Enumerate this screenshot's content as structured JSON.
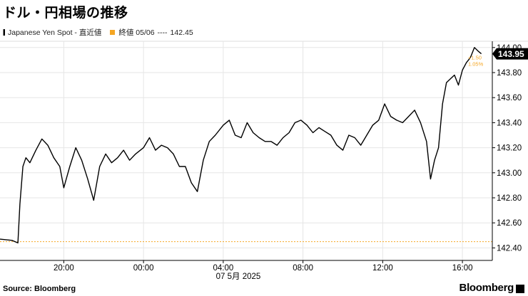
{
  "title": "ドル・円相場の推移",
  "legend": {
    "series_label": "Japanese Yen Spot - 直近値",
    "ref_label": "終値 05/06",
    "ref_dashes": "----",
    "ref_value": "142.45"
  },
  "colors": {
    "line": "#000000",
    "reference": "#f5a623",
    "grid": "#e6e6e6",
    "axis": "#000000"
  },
  "chart_data": {
    "type": "line",
    "title": "ドル・円相場の推移",
    "xlabel": "07 5月 2025",
    "ylabel": "",
    "x_ticks": [
      "20:00",
      "00:00",
      "04:00",
      "08:00",
      "12:00",
      "16:00"
    ],
    "x_tick_hours": [
      20,
      24,
      28,
      32,
      36,
      40
    ],
    "xlim_hours": [
      16.8,
      41.5
    ],
    "ylim": [
      142.3,
      144.05
    ],
    "y_ticks": [
      "142.40",
      "142.60",
      "142.80",
      "143.00",
      "143.20",
      "143.40",
      "143.60",
      "143.80",
      "144.00"
    ],
    "y_tick_values": [
      142.4,
      142.6,
      142.8,
      143.0,
      143.2,
      143.4,
      143.6,
      143.8,
      144.0
    ],
    "grid": true,
    "legend_position": "top-left",
    "reference_line": {
      "label": "終値 05/06",
      "value": 142.45
    },
    "last_value_label": "143.95",
    "change_labels": [
      "+1.50",
      "1.05%"
    ],
    "series": [
      {
        "name": "Japanese Yen Spot",
        "x_hours": [
          16.8,
          17.4,
          17.7,
          17.8,
          17.95,
          18.1,
          18.3,
          18.6,
          18.9,
          19.2,
          19.5,
          19.8,
          20.0,
          20.3,
          20.6,
          20.9,
          21.2,
          21.5,
          21.8,
          22.1,
          22.4,
          22.7,
          23.0,
          23.3,
          23.6,
          24.0,
          24.3,
          24.6,
          24.9,
          25.2,
          25.5,
          25.8,
          26.1,
          26.4,
          26.7,
          27.0,
          27.3,
          27.6,
          28.0,
          28.3,
          28.6,
          28.9,
          29.2,
          29.5,
          29.8,
          30.1,
          30.4,
          30.7,
          31.0,
          31.3,
          31.6,
          31.9,
          32.2,
          32.5,
          32.8,
          33.1,
          33.4,
          33.7,
          34.0,
          34.3,
          34.6,
          34.9,
          35.2,
          35.5,
          35.8,
          36.1,
          36.4,
          36.7,
          37.0,
          37.3,
          37.6,
          37.9,
          38.2,
          38.4,
          38.6,
          38.8,
          39.0,
          39.2,
          39.4,
          39.6,
          39.8,
          40.0,
          40.2,
          40.4,
          40.6,
          40.8,
          40.95
        ],
        "values": [
          142.47,
          142.46,
          142.44,
          142.75,
          143.05,
          143.12,
          143.08,
          143.18,
          143.27,
          143.22,
          143.12,
          143.05,
          142.88,
          143.05,
          143.2,
          143.1,
          142.95,
          142.78,
          143.05,
          143.15,
          143.08,
          143.12,
          143.18,
          143.1,
          143.15,
          143.2,
          143.28,
          143.18,
          143.22,
          143.2,
          143.15,
          143.05,
          143.05,
          142.92,
          142.85,
          143.1,
          143.25,
          143.3,
          143.38,
          143.42,
          143.3,
          143.28,
          143.4,
          143.32,
          143.28,
          143.25,
          143.25,
          143.22,
          143.28,
          143.32,
          143.4,
          143.42,
          143.38,
          143.32,
          143.36,
          143.33,
          143.3,
          143.22,
          143.18,
          143.3,
          143.28,
          143.22,
          143.3,
          143.38,
          143.42,
          143.55,
          143.45,
          143.42,
          143.4,
          143.45,
          143.5,
          143.4,
          143.25,
          142.95,
          143.1,
          143.2,
          143.55,
          143.72,
          143.75,
          143.78,
          143.7,
          143.82,
          143.88,
          143.92,
          144.0,
          143.97,
          143.95
        ]
      }
    ]
  },
  "footer": {
    "source": "Source:  Bloomberg",
    "brand": "Bloomberg"
  }
}
